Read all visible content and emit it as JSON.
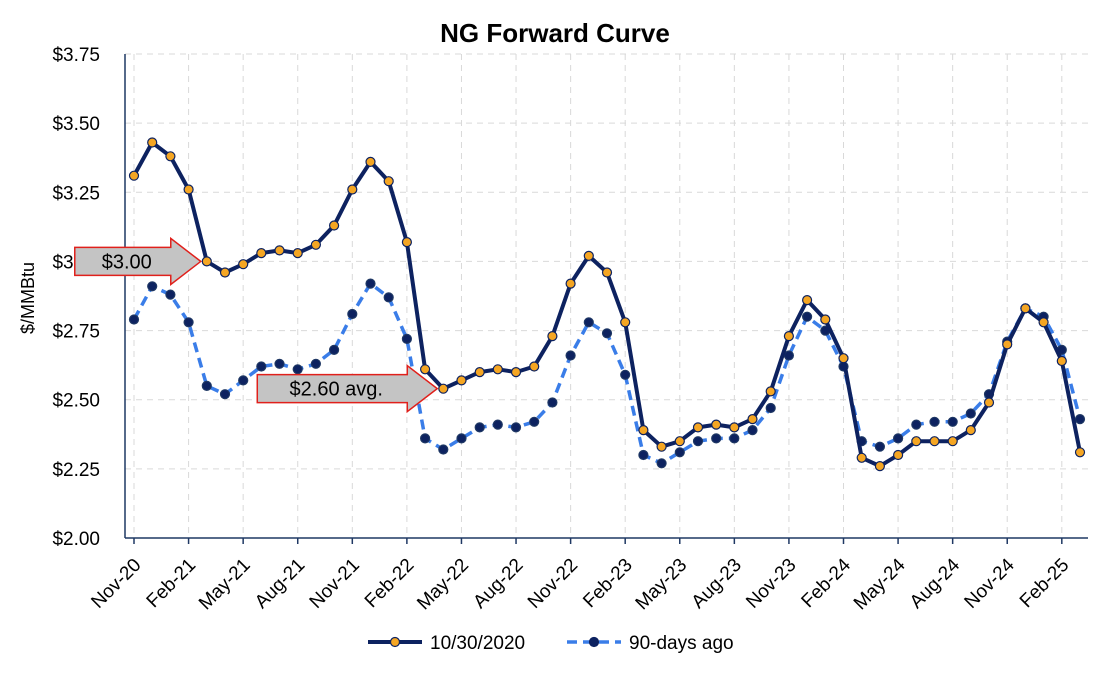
{
  "chart_data": {
    "type": "line",
    "title": "NG Forward Curve",
    "ylabel": "$/MMBtu",
    "xlabel": "",
    "ylim": [
      2.0,
      3.75
    ],
    "yticks": [
      "$2.00",
      "$2.25",
      "$2.50",
      "$2.75",
      "$3.00",
      "$3.25",
      "$3.50",
      "$3.75"
    ],
    "ytick_values": [
      2.0,
      2.25,
      2.5,
      2.75,
      3.0,
      3.25,
      3.5,
      3.75
    ],
    "x_tick_labels": [
      "Nov-20",
      "Feb-21",
      "May-21",
      "Aug-21",
      "Nov-21",
      "Feb-22",
      "May-22",
      "Aug-22",
      "Nov-22",
      "Feb-23",
      "May-23",
      "Aug-23",
      "Nov-23",
      "Feb-24",
      "May-24",
      "Aug-24",
      "Nov-24",
      "Feb-25"
    ],
    "x_tick_every": 3,
    "x_range": [
      "Nov-20",
      "Mar-25"
    ],
    "grid": true,
    "legend_position": "bottom",
    "series": [
      {
        "name": "10/30/2020",
        "color": "#0d2260",
        "style": "solid",
        "marker_color": "#f5a623",
        "values": [
          3.31,
          3.43,
          3.38,
          3.26,
          3.0,
          2.96,
          2.99,
          3.03,
          3.04,
          3.03,
          3.06,
          3.13,
          3.26,
          3.36,
          3.29,
          3.07,
          2.61,
          2.54,
          2.57,
          2.6,
          2.61,
          2.6,
          2.62,
          2.73,
          2.92,
          3.02,
          2.96,
          2.78,
          2.39,
          2.33,
          2.35,
          2.4,
          2.41,
          2.4,
          2.43,
          2.53,
          2.73,
          2.86,
          2.79,
          2.65,
          2.29,
          2.26,
          2.3,
          2.35,
          2.35,
          2.35,
          2.39,
          2.49,
          2.7,
          2.83,
          2.78,
          2.64,
          2.31
        ]
      },
      {
        "name": "90-days ago",
        "color": "#3a7de8",
        "style": "dashed",
        "marker_color": "#0d2260",
        "values": [
          2.79,
          2.91,
          2.88,
          2.78,
          2.55,
          2.52,
          2.57,
          2.62,
          2.63,
          2.61,
          2.63,
          2.68,
          2.81,
          2.92,
          2.87,
          2.72,
          2.36,
          2.32,
          2.36,
          2.4,
          2.41,
          2.4,
          2.42,
          2.49,
          2.66,
          2.78,
          2.74,
          2.59,
          2.3,
          2.27,
          2.31,
          2.35,
          2.36,
          2.36,
          2.39,
          2.47,
          2.66,
          2.8,
          2.75,
          2.62,
          2.35,
          2.33,
          2.36,
          2.41,
          2.42,
          2.42,
          2.45,
          2.52,
          2.71,
          2.83,
          2.8,
          2.68,
          2.43
        ]
      }
    ],
    "annotations": [
      {
        "text": "$3.00",
        "series": 0,
        "point": 4
      },
      {
        "text": "$2.60 avg.",
        "series": 0,
        "point": 17
      }
    ],
    "annotation_fill": "#c4c4c4",
    "annotation_stroke": "#e0201b"
  }
}
